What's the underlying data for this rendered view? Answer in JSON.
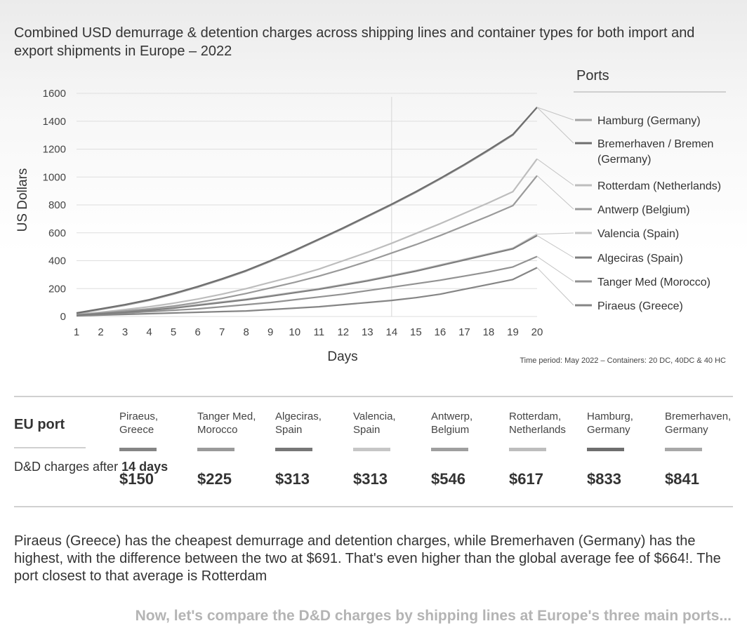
{
  "title": "Combined USD demurrage & detention charges across shipping lines and container types for both import and export shipments in Europe – 2022",
  "chart_data": {
    "type": "line",
    "title": "Combined USD demurrage & detention charges across shipping lines and container types for both import and export shipments in Europe – 2022",
    "xlabel": "Days",
    "ylabel": "US Dollars",
    "x": [
      1,
      2,
      3,
      4,
      5,
      6,
      7,
      8,
      9,
      10,
      11,
      12,
      13,
      14,
      15,
      16,
      17,
      18,
      19,
      20
    ],
    "xlim": [
      1,
      20
    ],
    "ylim": [
      0,
      1600
    ],
    "yticks": [
      0,
      200,
      400,
      600,
      800,
      1000,
      1200,
      1400,
      1600
    ],
    "grid": true,
    "reference_x": 14,
    "legend_title": "Ports",
    "legend_position": "right",
    "note": "Time period: May 2022 – Containers: 20 DC, 40DC & 40 HC",
    "series": [
      {
        "name": "Hamburg (Germany)",
        "color": "#a3a3a3",
        "values": [
          20,
          50,
          80,
          115,
          160,
          210,
          265,
          325,
          395,
          470,
          550,
          630,
          715,
          800,
          890,
          985,
          1085,
          1190,
          1300,
          1500
        ]
      },
      {
        "name": "Bremerhaven / Bremen (Germany)",
        "color": "#6e6e6e",
        "values": [
          25,
          55,
          85,
          120,
          165,
          215,
          270,
          330,
          400,
          475,
          555,
          635,
          720,
          805,
          895,
          990,
          1090,
          1195,
          1305,
          1500
        ]
      },
      {
        "name": "Rotterdam (Netherlands)",
        "color": "#bdbdbd",
        "values": [
          15,
          30,
          50,
          70,
          95,
          125,
          160,
          200,
          245,
          290,
          340,
          400,
          460,
          525,
          595,
          665,
          740,
          815,
          895,
          1130
        ]
      },
      {
        "name": "Antwerp (Belgium)",
        "color": "#9a9a9a",
        "values": [
          10,
          25,
          40,
          55,
          75,
          100,
          130,
          165,
          205,
          245,
          290,
          340,
          395,
          455,
          515,
          580,
          650,
          720,
          795,
          1010
        ]
      },
      {
        "name": "Valencia (Spain)",
        "color": "#c6c6c6",
        "values": [
          10,
          20,
          35,
          50,
          65,
          85,
          105,
          125,
          150,
          175,
          200,
          230,
          260,
          295,
          330,
          370,
          410,
          450,
          490,
          590
        ]
      },
      {
        "name": "Algeciras (Spain)",
        "color": "#7f7f7f",
        "values": [
          10,
          20,
          30,
          45,
          60,
          80,
          100,
          120,
          145,
          170,
          195,
          225,
          255,
          290,
          325,
          365,
          405,
          445,
          485,
          580
        ]
      },
      {
        "name": "Tanger Med (Morocco)",
        "color": "#929292",
        "values": [
          10,
          15,
          25,
          35,
          45,
          55,
          70,
          85,
          100,
          120,
          140,
          160,
          185,
          210,
          235,
          260,
          290,
          320,
          355,
          430
        ]
      },
      {
        "name": "Piraeus (Greece)",
        "color": "#858585",
        "values": [
          5,
          10,
          15,
          20,
          25,
          30,
          35,
          40,
          50,
          60,
          70,
          85,
          100,
          115,
          135,
          160,
          195,
          230,
          265,
          350
        ]
      }
    ]
  },
  "table": {
    "header_label": "EU port",
    "row_label_prefix": "D&D charges after",
    "row_label_bold": "14 days",
    "ports": [
      {
        "name": "Piraeus, Greece",
        "value": "$150",
        "color": "#858585"
      },
      {
        "name": "Tanger Med, Morocco",
        "value": "$225",
        "color": "#9a9a9a"
      },
      {
        "name": "Algeciras, Spain",
        "value": "$313",
        "color": "#777777"
      },
      {
        "name": "Valencia, Spain",
        "value": "$313",
        "color": "#c6c6c6"
      },
      {
        "name": "Antwerp, Belgium",
        "value": "$546",
        "color": "#9f9f9f"
      },
      {
        "name": "Rotterdam, Netherlands",
        "value": "$617",
        "color": "#bdbdbd"
      },
      {
        "name": "Hamburg, Germany",
        "value": "$833",
        "color": "#6e6e6e"
      },
      {
        "name": "Bremerhaven, Germany",
        "value": "$841",
        "color": "#a8a8a8"
      }
    ]
  },
  "note": "Piraeus (Greece) has the cheapest demurrage and detention charges, while Bremerhaven (Germany) has the highest, with the difference between the two at $691. That's even higher than the global average fee of $664!. The port closest to that average is Rotterdam",
  "footer": "Now, let's compare the D&D charges by shipping lines at Europe's three main ports..."
}
